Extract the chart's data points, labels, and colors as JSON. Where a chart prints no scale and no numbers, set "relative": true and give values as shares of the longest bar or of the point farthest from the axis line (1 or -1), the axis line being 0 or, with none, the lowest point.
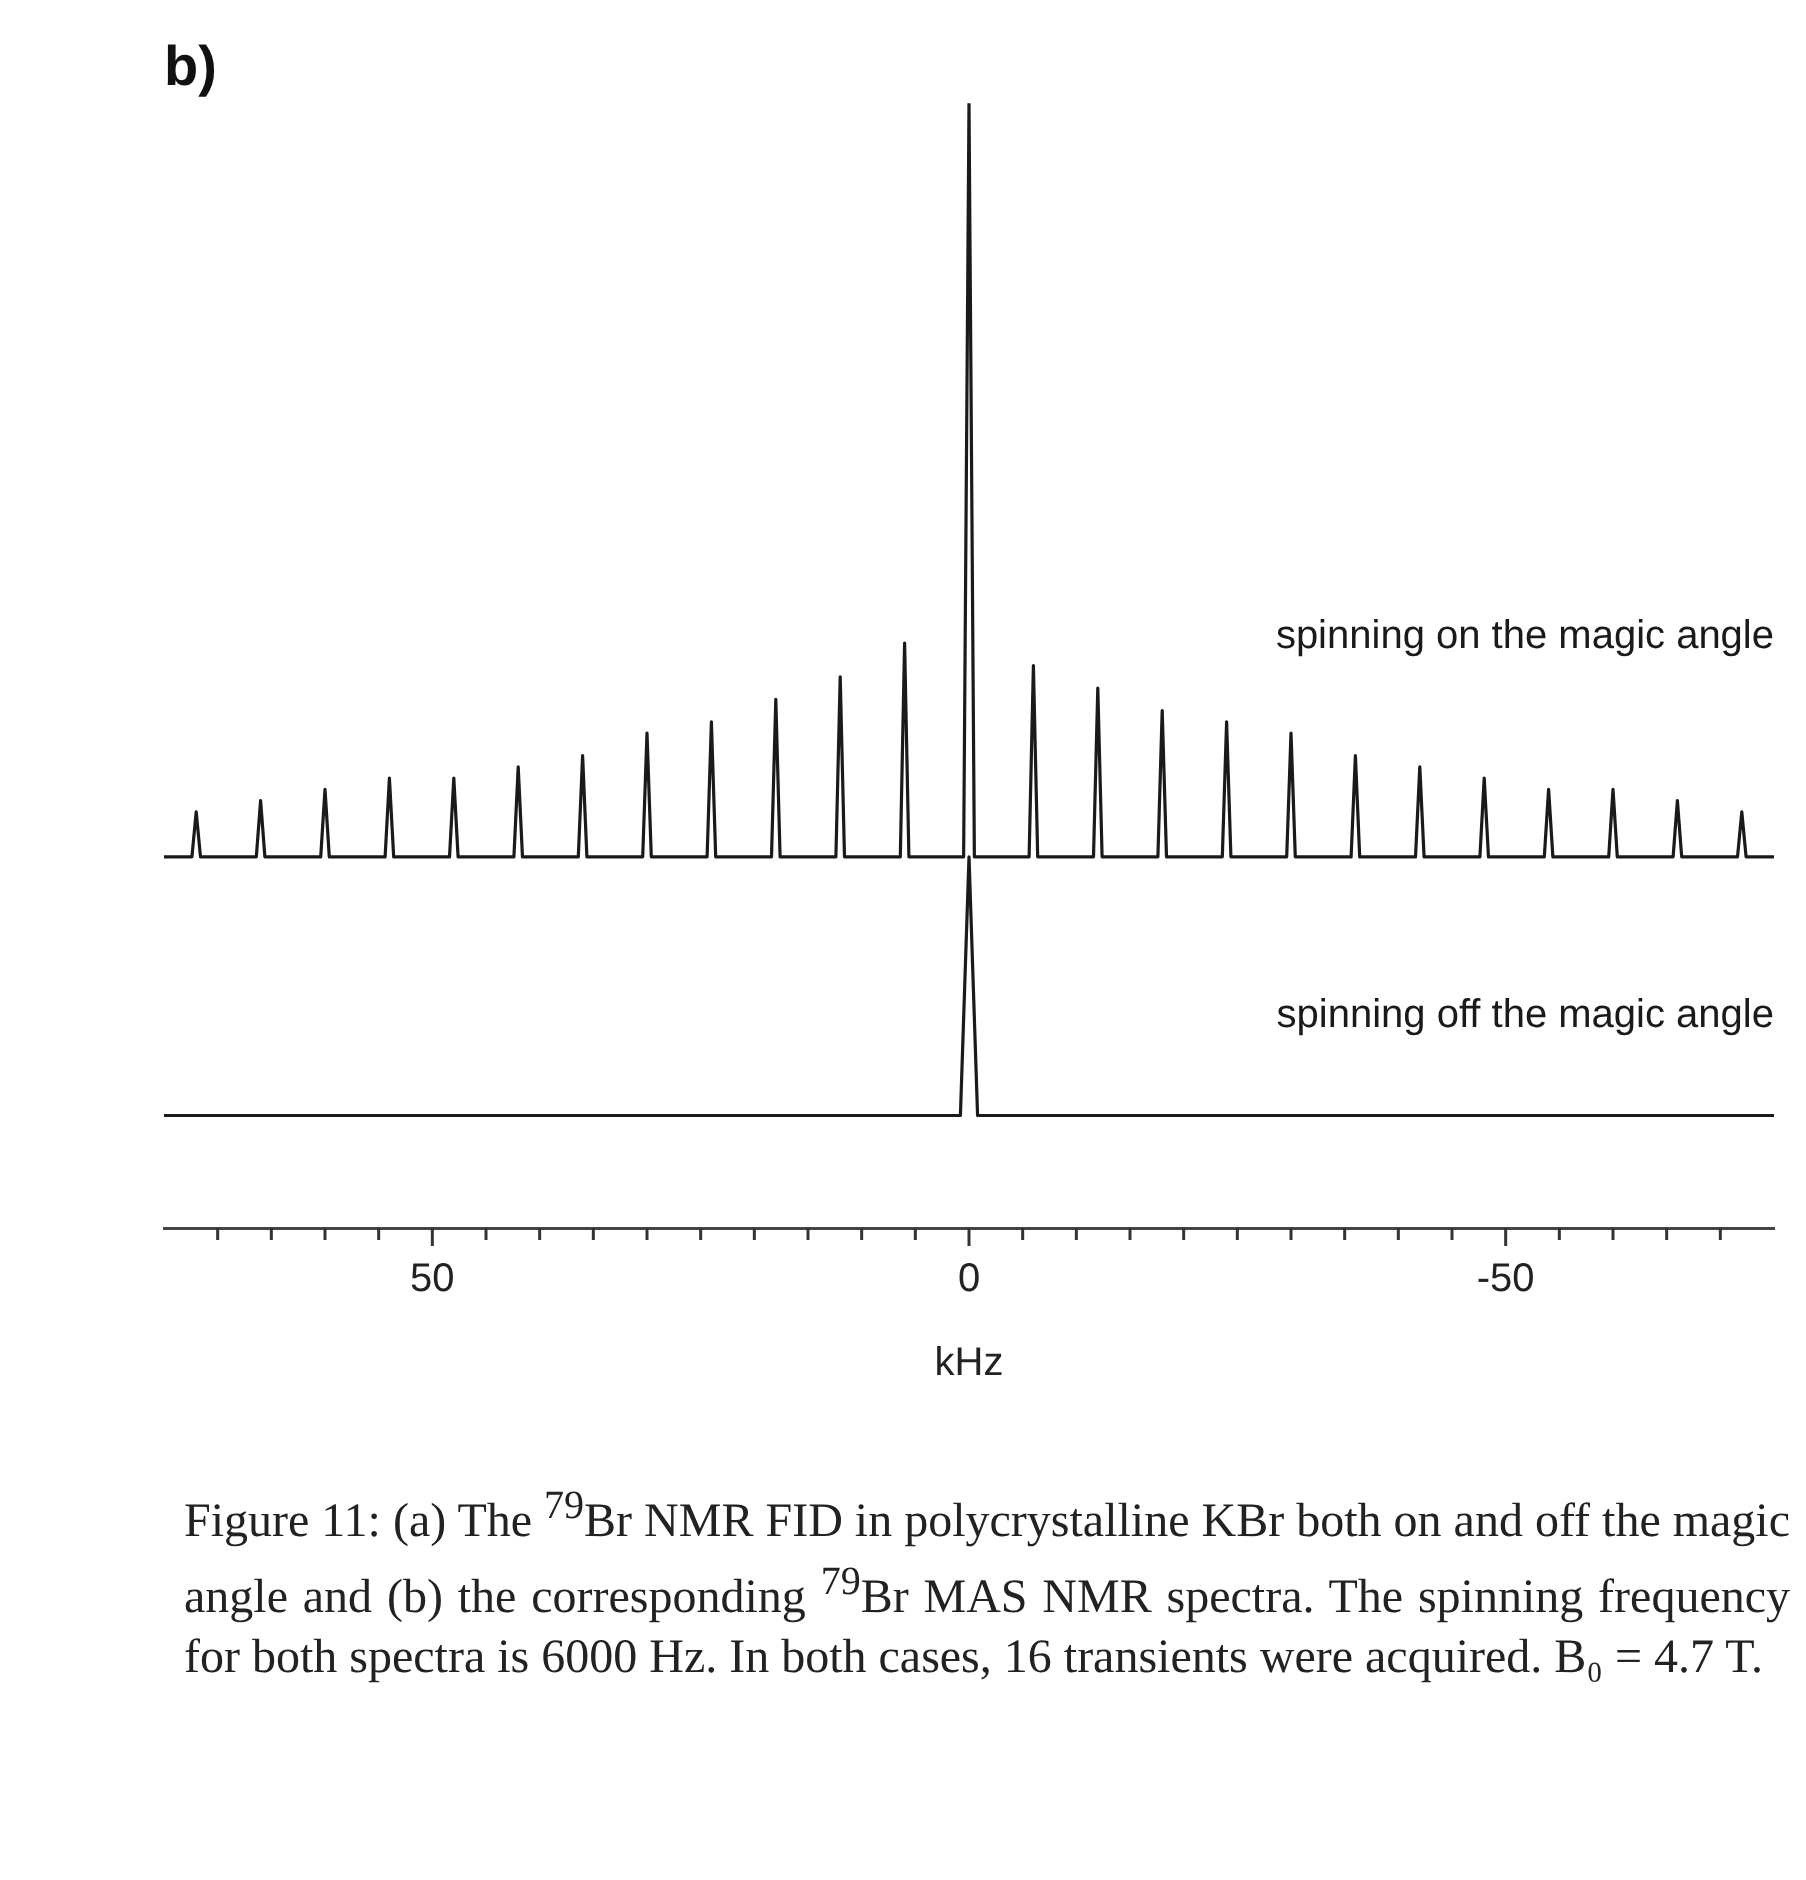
{
  "chart_data": {
    "type": "line",
    "title": "b)",
    "xlabel": "kHz",
    "relative": true,
    "legend": false,
    "grid": false,
    "marker": "none",
    "line_style": "solid",
    "xlim": [
      75,
      -75
    ],
    "xticks": [
      {
        "value": 70,
        "label": null
      },
      {
        "value": 65,
        "label": null
      },
      {
        "value": 60,
        "label": null
      },
      {
        "value": 55,
        "label": null
      },
      50,
      {
        "value": 45,
        "label": null
      },
      {
        "value": 40,
        "label": null
      },
      {
        "value": 35,
        "label": null
      },
      {
        "value": 30,
        "label": null
      },
      {
        "value": 25,
        "label": null
      },
      {
        "value": 20,
        "label": null
      },
      {
        "value": 15,
        "label": null
      },
      {
        "value": 10,
        "label": null
      },
      {
        "value": 5,
        "label": null
      },
      0,
      {
        "value": -5,
        "label": null
      },
      {
        "value": -10,
        "label": null
      },
      {
        "value": -15,
        "label": null
      },
      {
        "value": -20,
        "label": null
      },
      {
        "value": -25,
        "label": null
      },
      {
        "value": -30,
        "label": null
      },
      {
        "value": -35,
        "label": null
      },
      {
        "value": -40,
        "label": null
      },
      {
        "value": -45,
        "label": null
      },
      -50,
      {
        "value": -55,
        "label": null
      },
      {
        "value": -60,
        "label": null
      },
      {
        "value": -65,
        "label": null
      },
      {
        "value": -70,
        "label": null
      }
    ],
    "series": [
      {
        "name": "spinning on the magic angle",
        "color": "#1a1a1a",
        "x": [
          75,
          72.4,
          72,
          71.6,
          66.4,
          66,
          65.6,
          60.4,
          60,
          59.6,
          54.4,
          54,
          53.6,
          48.4,
          48,
          47.6,
          42.4,
          42,
          41.6,
          36.4,
          36,
          35.6,
          30.4,
          30,
          29.6,
          24.4,
          24,
          23.6,
          18.4,
          18,
          17.6,
          12.4,
          12,
          11.6,
          6.4,
          6,
          5.6,
          0.5,
          0,
          -0.5,
          -5.6,
          -6,
          -6.4,
          -11.6,
          -12,
          -12.4,
          -17.6,
          -18,
          -18.4,
          -23.6,
          -24,
          -24.4,
          -29.6,
          -30,
          -30.4,
          -35.6,
          -36,
          -36.4,
          -41.6,
          -42,
          -42.4,
          -47.6,
          -48,
          -48.4,
          -53.6,
          -54,
          -54.4,
          -59.6,
          -60,
          -60.4,
          -65.6,
          -66,
          -66.4,
          -71.6,
          -72,
          -72.4,
          -75
        ],
        "values": [
          0.33,
          0.33,
          0.37,
          0.33,
          0.33,
          0.38,
          0.33,
          0.33,
          0.39,
          0.33,
          0.33,
          0.4,
          0.33,
          0.33,
          0.4,
          0.33,
          0.33,
          0.41,
          0.33,
          0.33,
          0.42,
          0.33,
          0.33,
          0.44,
          0.33,
          0.33,
          0.45,
          0.33,
          0.33,
          0.47,
          0.33,
          0.33,
          0.49,
          0.33,
          0.33,
          0.52,
          0.33,
          0.33,
          1.0,
          0.33,
          0.33,
          0.5,
          0.33,
          0.33,
          0.48,
          0.33,
          0.33,
          0.46,
          0.33,
          0.33,
          0.45,
          0.33,
          0.33,
          0.44,
          0.33,
          0.33,
          0.42,
          0.33,
          0.33,
          0.41,
          0.33,
          0.33,
          0.4,
          0.33,
          0.33,
          0.39,
          0.33,
          0.33,
          0.39,
          0.33,
          0.33,
          0.38,
          0.33,
          0.33,
          0.37,
          0.33,
          0.33
        ]
      },
      {
        "name": "spinning off the magic angle",
        "color": "#1a1a1a",
        "x": [
          75,
          0.8,
          0,
          -0.8,
          -75
        ],
        "values": [
          0.1,
          0.1,
          0.33,
          0.1,
          0.1
        ]
      }
    ],
    "annotations": [
      "Figure 11: (a) The $^{79}$Br NMR FID in polycrystalline KBr both on and off the magic angle and (b) the corresponding $^{79}$Br MAS NMR spectra. The spinning frequency for both spectra is 6000 Hz. In both cases, 16 transients were acquired. B₀ = 4.7 T."
    ]
  }
}
